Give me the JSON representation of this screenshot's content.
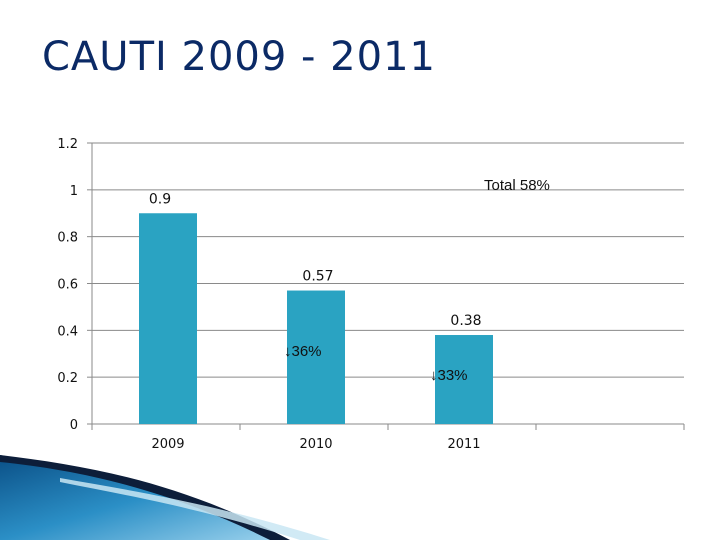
{
  "slide": {
    "title": "CAUTI 2009 - 2011"
  },
  "chart_data": {
    "type": "bar",
    "categories": [
      "2009",
      "2010",
      "2011"
    ],
    "values": [
      0.9,
      0.57,
      0.38
    ],
    "data_labels": [
      "0.9",
      "0.57",
      "0.38"
    ],
    "y_ticks": [
      "0",
      "0.2",
      "0.4",
      "0.6",
      "0.8",
      "1",
      "1.2"
    ],
    "ylim": [
      0,
      1.2
    ],
    "grid": true,
    "legend": false,
    "bar_color": "#2aa3c2",
    "title": "",
    "xlabel": "",
    "ylabel": "",
    "annotations": {
      "total": "Total 58%",
      "change_2010": "↓36%",
      "change_2011": "↓33%"
    }
  }
}
